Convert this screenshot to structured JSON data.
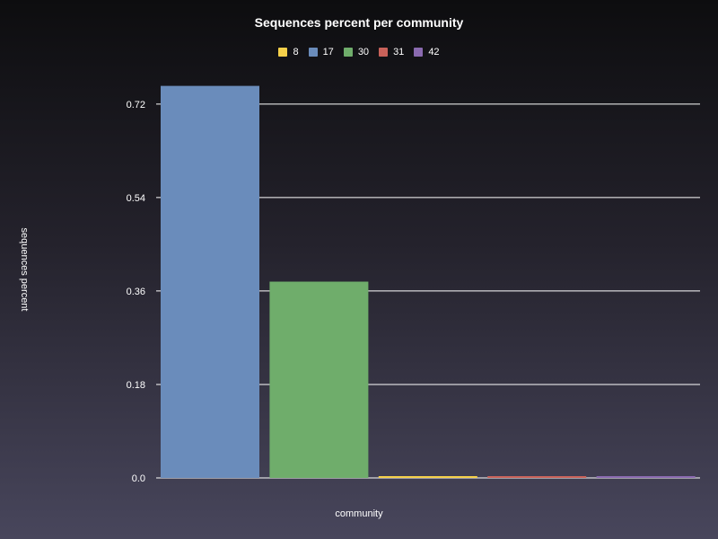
{
  "chart_data": {
    "type": "bar",
    "title": "Sequences percent per community",
    "xlabel": "community",
    "ylabel": "sequences percent",
    "categories": [
      "17",
      "30",
      "8",
      "31",
      "42"
    ],
    "series": [
      {
        "name": "8",
        "value": 0.003,
        "color": "#f5d04a",
        "order": 2
      },
      {
        "name": "17",
        "value": 0.755,
        "color": "#6a8cbb",
        "order": 0
      },
      {
        "name": "30",
        "value": 0.378,
        "color": "#6fad6b",
        "order": 1
      },
      {
        "name": "31",
        "value": 0.003,
        "color": "#c9625a",
        "order": 3
      },
      {
        "name": "42",
        "value": 0.003,
        "color": "#8a6ab0",
        "order": 4
      }
    ],
    "yticks": [
      "0.0",
      "0.18",
      "0.36",
      "0.54",
      "0.72"
    ],
    "ytick_values": [
      0,
      0.18,
      0.36,
      0.54,
      0.72
    ],
    "ylim": [
      0,
      0.755
    ],
    "grid": true,
    "legend_position": "top-center"
  }
}
